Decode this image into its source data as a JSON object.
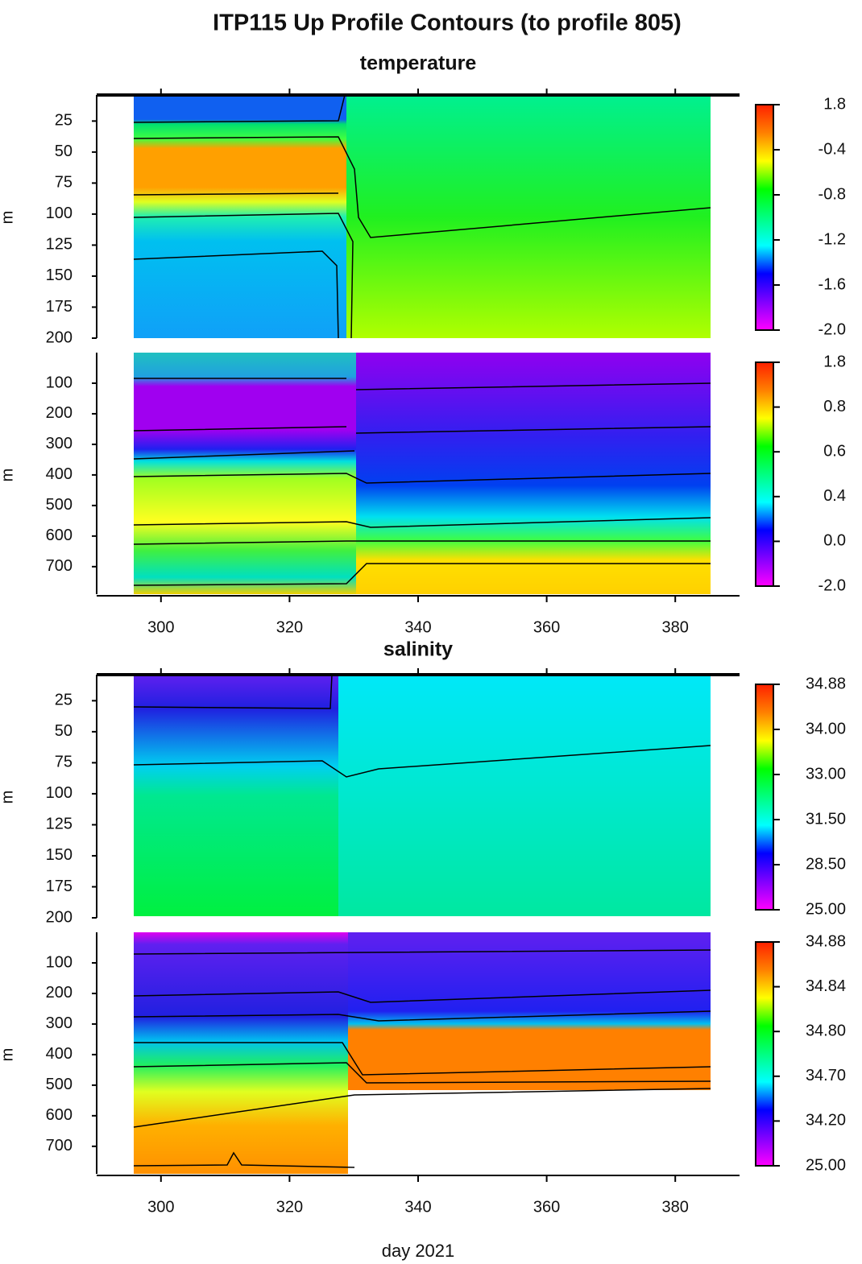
{
  "title": "ITP115 Up Profile Contours (to profile 805)",
  "xlabel": "day 2021",
  "ylabel": "m",
  "chart_data": [
    {
      "type": "contour",
      "subtitle": "temperature",
      "xlim": [
        290,
        390
      ],
      "xticks": [
        300,
        320,
        340,
        360,
        380
      ],
      "colormap": [
        "#ff00ff",
        "#8000ff",
        "#0000ff",
        "#00ffff",
        "#00ff80",
        "#00ff00",
        "#ffff00",
        "#ff8000",
        "#ff2000"
      ],
      "panels": [
        {
          "ylim": [
            4,
            200
          ],
          "y_inverted": true,
          "yticks": [
            25,
            50,
            75,
            100,
            125,
            150,
            175,
            200
          ],
          "colorbar": [
            1.8,
            -0.4,
            -0.8,
            -1.2,
            -1.6,
            {
              "value": -2,
              "label": "-2.0"
            }
          ]
        },
        {
          "ylim": [
            0,
            790
          ],
          "y_inverted": true,
          "yticks": [
            100,
            200,
            300,
            400,
            500,
            600,
            700
          ],
          "colorbar": [
            1.8,
            0.8,
            0.6,
            0.4,
            {
              "value": 0,
              "label": "0.0"
            },
            {
              "value": -2,
              "label": "-2.0"
            }
          ]
        }
      ]
    },
    {
      "type": "contour",
      "subtitle": "salinity",
      "xlim": [
        290,
        390
      ],
      "xticks": [
        300,
        320,
        340,
        360,
        380
      ],
      "colormap": [
        "#ff00ff",
        "#8000ff",
        "#0000ff",
        "#00ffff",
        "#00ff80",
        "#00ff00",
        "#ffff00",
        "#ff8000",
        "#ff2000"
      ],
      "panels": [
        {
          "ylim": [
            4,
            200
          ],
          "y_inverted": true,
          "yticks": [
            25,
            50,
            75,
            100,
            125,
            150,
            175,
            200
          ],
          "colorbar": [
            34.88,
            {
              "value": 34,
              "label": "34.00"
            },
            {
              "value": 33,
              "label": "33.00"
            },
            {
              "value": 31.5,
              "label": "31.50"
            },
            {
              "value": 28.5,
              "label": "28.50"
            },
            {
              "value": 25,
              "label": "25.00"
            }
          ]
        },
        {
          "ylim": [
            0,
            790
          ],
          "y_inverted": true,
          "yticks": [
            100,
            200,
            300,
            400,
            500,
            600,
            700
          ],
          "colorbar": [
            34.88,
            34.84,
            {
              "value": 34.8,
              "label": "34.80"
            },
            {
              "value": 34.7,
              "label": "34.70"
            },
            {
              "value": 34.2,
              "label": "34.20"
            },
            {
              "value": 25,
              "label": "25.00"
            }
          ]
        }
      ]
    }
  ]
}
